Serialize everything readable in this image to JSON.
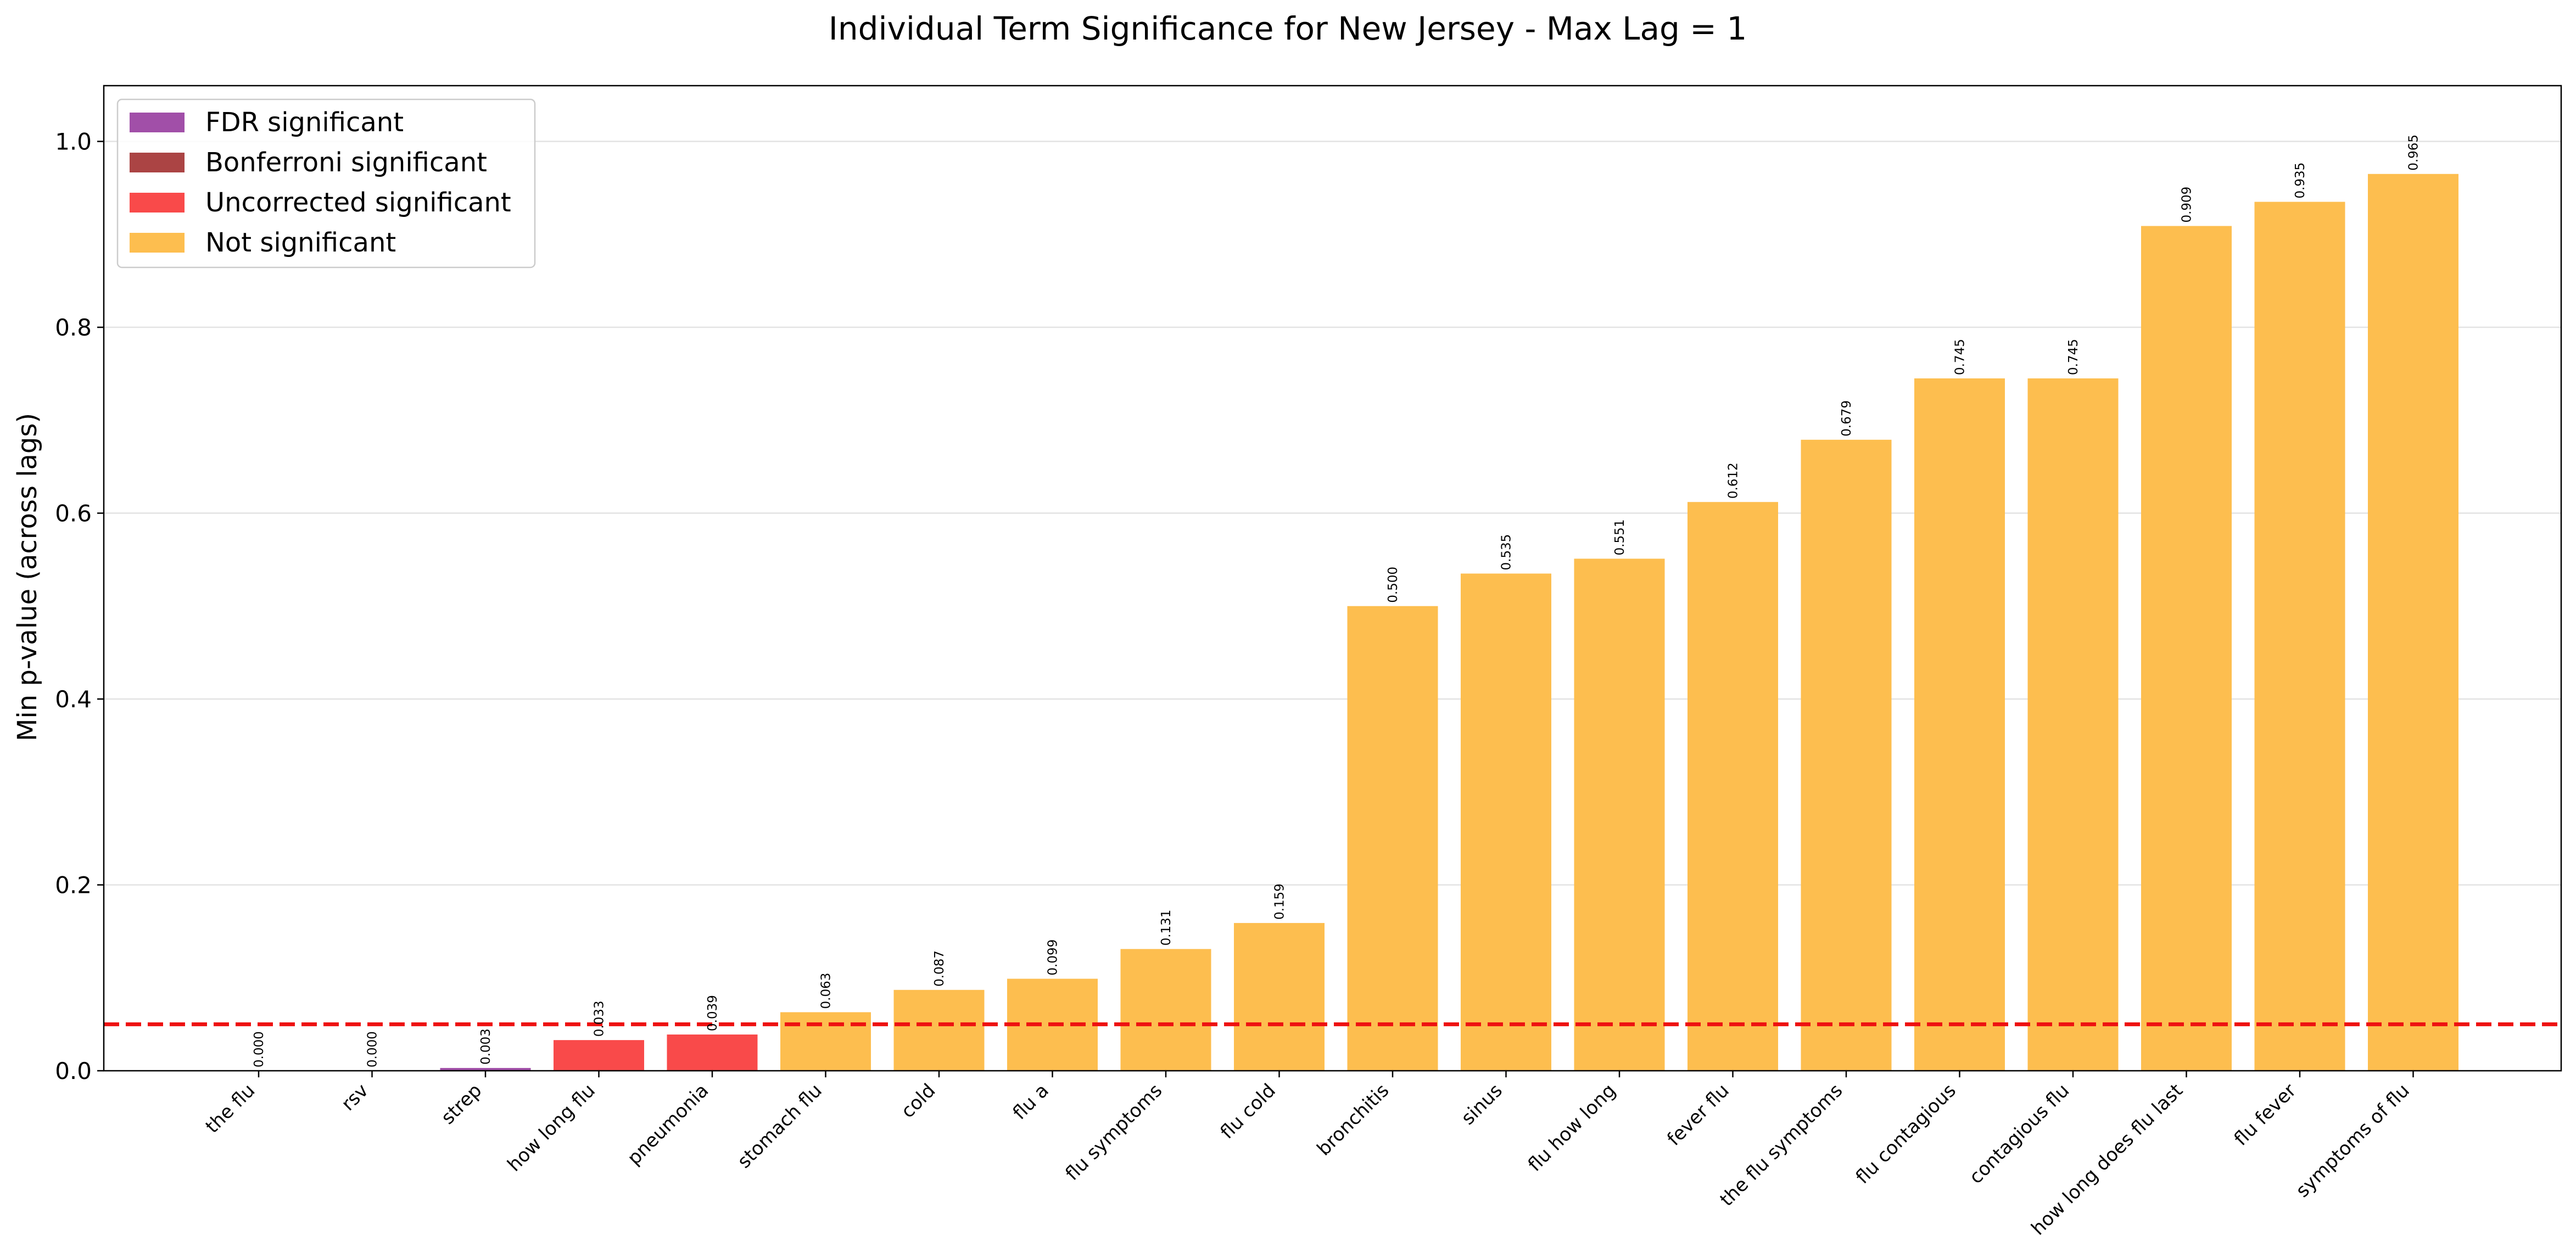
{
  "chart_data": {
    "type": "bar",
    "title": "Individual Term Significance for New Jersey - Max Lag = 1",
    "xlabel": "",
    "ylabel": "Min p-value (across lags)",
    "ylim": [
      0,
      1.06
    ],
    "yticks": [
      "0.0",
      "0.2",
      "0.4",
      "0.6",
      "0.8",
      "1.0"
    ],
    "threshold": 0.05,
    "grid": "horizontal",
    "legend_position": "top-left",
    "categories": [
      "the flu",
      "rsv",
      "strep",
      "how long flu",
      "pneumonia",
      "stomach flu",
      "cold",
      "flu a",
      "flu symptoms",
      "flu cold",
      "bronchitis",
      "sinus",
      "flu how long",
      "fever flu",
      "the flu symptoms",
      "flu contagious",
      "contagious flu",
      "how long does flu last",
      "flu fever",
      "symptoms of flu"
    ],
    "values": [
      0.0,
      0.0,
      0.003,
      0.033,
      0.039,
      0.063,
      0.087,
      0.099,
      0.131,
      0.159,
      0.5,
      0.535,
      0.551,
      0.612,
      0.679,
      0.745,
      0.745,
      0.909,
      0.935,
      0.965
    ],
    "value_labels": [
      "0.000",
      "0.000",
      "0.003",
      "0.033",
      "0.039",
      "0.063",
      "0.087",
      "0.099",
      "0.131",
      "0.159",
      "0.500",
      "0.535",
      "0.551",
      "0.612",
      "0.679",
      "0.745",
      "0.745",
      "0.909",
      "0.935",
      "0.965"
    ],
    "significance": [
      "fdr",
      "fdr",
      "fdr",
      "uncorrected",
      "uncorrected",
      "none",
      "none",
      "none",
      "none",
      "none",
      "none",
      "none",
      "none",
      "none",
      "none",
      "none",
      "none",
      "none",
      "none",
      "none"
    ],
    "legend": [
      {
        "key": "fdr",
        "label": "FDR significant",
        "color": "#a14fa8"
      },
      {
        "key": "bonferroni",
        "label": "Bonferroni significant",
        "color": "#ab4444"
      },
      {
        "key": "uncorrected",
        "label": "Uncorrected significant",
        "color": "#f94a4a"
      },
      {
        "key": "none",
        "label": "Not significant",
        "color": "#fdbe4f"
      }
    ],
    "threshold_color": "#ee1111"
  }
}
